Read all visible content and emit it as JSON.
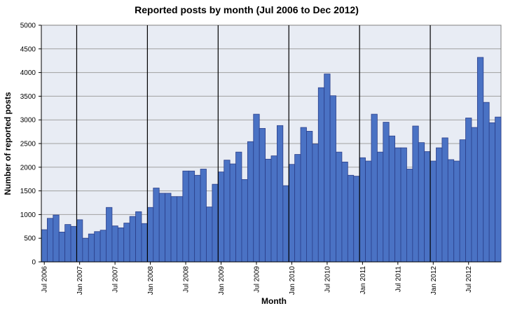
{
  "chart_data": {
    "type": "bar",
    "title": "Reported posts by month (Jul 2006 to Dec 2012)",
    "xlabel": "Month",
    "ylabel": "Number of reported posts",
    "ylim": [
      0,
      5000
    ],
    "yticks": [
      0,
      500,
      1000,
      1500,
      2000,
      2500,
      3000,
      3500,
      4000,
      4500,
      5000
    ],
    "grid": true,
    "legend": "none",
    "x_start": "Jul 2006",
    "x_tick_labels": [
      "Jul 2006",
      "Jan 2007",
      "Jul 2007",
      "Jan 2008",
      "Jul 2008",
      "Jan 2009",
      "Jul 2009",
      "Jan 2010",
      "Jul 2010",
      "Jan 2011",
      "Jul 2011",
      "Jan 2012",
      "Jul 2012"
    ],
    "year_dividers_before": [
      "Jan 2007",
      "Jan 2008",
      "Jan 2009",
      "Jan 2010",
      "Jan 2011",
      "Jan 2012"
    ],
    "colors": {
      "bar_fill": "#4a72c4",
      "bar_stroke": "#2b3f8a",
      "plot_bg": "#e8ecf4",
      "gridline": "#a0a0a0",
      "divider": "#000000"
    },
    "values": [
      680,
      920,
      990,
      630,
      790,
      750,
      890,
      500,
      590,
      640,
      670,
      1150,
      760,
      720,
      820,
      960,
      1060,
      810,
      1150,
      1560,
      1450,
      1450,
      1380,
      1380,
      1920,
      1920,
      1830,
      1960,
      1160,
      1640,
      1900,
      2150,
      2070,
      2320,
      1740,
      2540,
      3120,
      2820,
      2170,
      2240,
      2880,
      1610,
      2060,
      2270,
      2840,
      2760,
      2490,
      3680,
      3970,
      3510,
      2320,
      2110,
      1830,
      1810,
      2200,
      2130,
      3120,
      2320,
      2950,
      2660,
      2410,
      2410,
      1960,
      2870,
      2520,
      2330,
      2130,
      2410,
      2620,
      2160,
      2130,
      2580,
      3040,
      2840,
      4320,
      3370,
      2940,
      3060
    ]
  }
}
